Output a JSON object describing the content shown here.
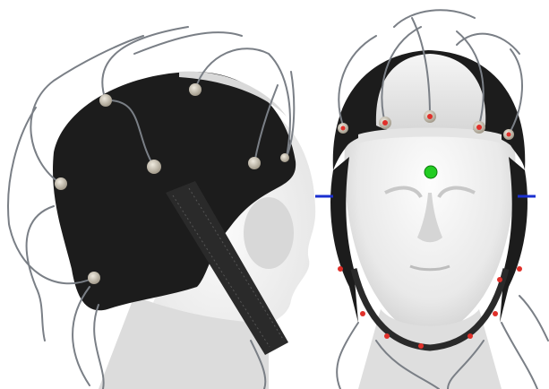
{
  "photo": {
    "panels": [
      {
        "id": "left",
        "view": "side",
        "subject": "eeg-cap-on-mannequin"
      },
      {
        "id": "right",
        "view": "front",
        "subject": "eeg-cap-on-mannequin"
      }
    ]
  },
  "colors": {
    "background": "#ffffff",
    "mannequin_light": "#f2f2f2",
    "mannequin_shade": "#c9c9c9",
    "cap_fabric": "#1c1c1c",
    "cap_panel_white": "#eaeaea",
    "electrode_metal": "#bfb7a8",
    "electrode_red": "#e0302a",
    "wire_gray": "#7a7f86",
    "reference_marker_green": "#22cc22",
    "ear_marker_blue": "#1a2fd0"
  },
  "markers": {
    "nasion_dot": {
      "color_name": "green"
    },
    "ear_lines": {
      "color_name": "blue",
      "count": 2
    }
  }
}
